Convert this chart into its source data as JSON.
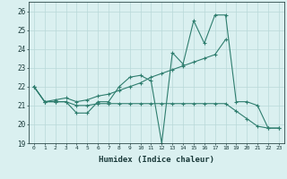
{
  "xlabel": "Humidex (Indice chaleur)",
  "x": [
    0,
    1,
    2,
    3,
    4,
    5,
    6,
    7,
    8,
    9,
    10,
    11,
    12,
    13,
    14,
    15,
    16,
    17,
    18,
    19,
    20,
    21,
    22,
    23
  ],
  "line1": [
    22.0,
    21.2,
    21.2,
    21.2,
    20.6,
    20.6,
    21.2,
    21.2,
    22.0,
    22.5,
    22.6,
    22.3,
    19.0,
    23.8,
    23.2,
    25.5,
    24.3,
    25.8,
    25.8,
    21.2,
    21.2,
    21.0,
    19.8,
    19.8
  ],
  "line2": [
    22.0,
    21.2,
    21.3,
    21.4,
    21.2,
    21.3,
    21.5,
    21.6,
    21.8,
    22.0,
    22.2,
    22.5,
    22.7,
    22.9,
    23.1,
    23.3,
    23.5,
    23.7,
    24.5,
    null,
    null,
    null,
    null,
    null
  ],
  "line3": [
    22.0,
    21.2,
    21.2,
    21.2,
    21.0,
    21.0,
    21.1,
    21.1,
    21.1,
    21.1,
    21.1,
    21.1,
    21.1,
    21.1,
    21.1,
    21.1,
    21.1,
    21.1,
    21.1,
    20.7,
    20.3,
    19.9,
    19.8,
    19.8
  ],
  "color": "#2e7d6e",
  "bg_color": "#daf0f0",
  "grid_color": "#b8d8d8",
  "ylim": [
    19,
    26.5
  ],
  "yticks": [
    19,
    20,
    21,
    22,
    23,
    24,
    25,
    26
  ],
  "xlim": [
    -0.5,
    23.5
  ]
}
